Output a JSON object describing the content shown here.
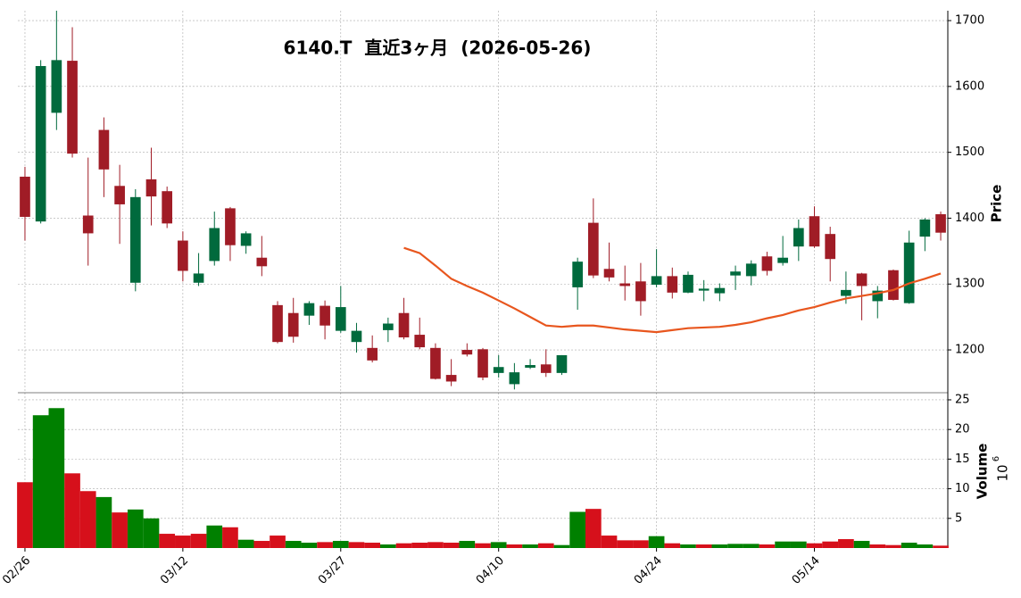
{
  "chart_data": {
    "type": "candlestick",
    "title": "6140.T  直近3ヶ月  (2026-05-26)",
    "y_label": "Price",
    "volume_label": "Volume",
    "volume_multiplier_base": "10",
    "volume_multiplier_exponent": "6",
    "categories": [
      "02/26",
      null,
      null,
      null,
      null,
      null,
      null,
      null,
      null,
      null,
      "03/12",
      null,
      null,
      null,
      null,
      null,
      null,
      null,
      null,
      null,
      "03/27",
      null,
      null,
      null,
      null,
      null,
      null,
      null,
      null,
      null,
      "04/10",
      null,
      null,
      null,
      null,
      null,
      null,
      null,
      null,
      null,
      "04/24",
      null,
      null,
      null,
      null,
      null,
      null,
      null,
      null,
      null,
      "05/14",
      null,
      null,
      null,
      null,
      null,
      null,
      null,
      null
    ],
    "open": [
      1463,
      1395,
      1560,
      1639,
      1404,
      1534,
      1449,
      1302,
      1459,
      1441,
      1366,
      1302,
      1335,
      1415,
      1358,
      1340,
      1268,
      1256,
      1252,
      1267,
      1229,
      1212,
      1203,
      1230,
      1256,
      1223,
      1203,
      1162,
      1200,
      1201,
      1165,
      1148,
      1173,
      1178,
      1165,
      1295,
      1393,
      1323,
      1301,
      1304,
      1299,
      1312,
      1287,
      1290,
      1286,
      1313,
      1312,
      1342,
      1332,
      1357,
      1403,
      1376,
      1282,
      1316,
      1274,
      1321,
      1271,
      1372,
      1406
    ],
    "high": [
      1478,
      1640,
      1715,
      1690,
      1492,
      1553,
      1481,
      1444,
      1507,
      1448,
      1380,
      1347,
      1410,
      1417,
      1380,
      1373,
      1274,
      1279,
      1274,
      1275,
      1297,
      1241,
      1222,
      1249,
      1279,
      1249,
      1210,
      1186,
      1210,
      1203,
      1192,
      1180,
      1186,
      1201,
      1192,
      1340,
      1430,
      1363,
      1328,
      1332,
      1353,
      1325,
      1319,
      1306,
      1301,
      1328,
      1336,
      1349,
      1373,
      1398,
      1418,
      1387,
      1319,
      1317,
      1297,
      1322,
      1381,
      1400,
      1410
    ],
    "low": [
      1366,
      1392,
      1534,
      1492,
      1328,
      1432,
      1361,
      1289,
      1389,
      1385,
      1304,
      1297,
      1328,
      1335,
      1346,
      1312,
      1210,
      1211,
      1238,
      1216,
      1226,
      1196,
      1181,
      1212,
      1216,
      1201,
      1155,
      1145,
      1190,
      1154,
      1158,
      1140,
      1171,
      1159,
      1162,
      1261,
      1309,
      1304,
      1275,
      1252,
      1295,
      1278,
      1286,
      1274,
      1274,
      1291,
      1298,
      1313,
      1328,
      1335,
      1355,
      1304,
      1270,
      1245,
      1248,
      1275,
      1270,
      1350,
      1366
    ],
    "close": [
      1402,
      1631,
      1640,
      1498,
      1377,
      1474,
      1421,
      1432,
      1433,
      1392,
      1320,
      1316,
      1385,
      1359,
      1377,
      1327,
      1212,
      1220,
      1271,
      1237,
      1265,
      1229,
      1184,
      1240,
      1219,
      1204,
      1156,
      1152,
      1193,
      1158,
      1174,
      1166,
      1177,
      1165,
      1192,
      1334,
      1313,
      1310,
      1297,
      1274,
      1312,
      1287,
      1314,
      1293,
      1294,
      1319,
      1331,
      1320,
      1340,
      1385,
      1357,
      1338,
      1291,
      1297,
      1290,
      1276,
      1363,
      1398,
      1378
    ],
    "volume": [
      11.1,
      22.4,
      23.6,
      12.6,
      9.6,
      8.6,
      6.0,
      6.5,
      5.0,
      2.4,
      2.1,
      2.4,
      3.8,
      3.5,
      1.4,
      1.2,
      2.1,
      1.2,
      0.9,
      1.0,
      1.2,
      1.0,
      0.9,
      0.6,
      0.8,
      0.9,
      1.0,
      0.9,
      1.2,
      0.8,
      1.0,
      0.6,
      0.6,
      0.8,
      0.5,
      6.1,
      6.6,
      2.1,
      1.3,
      1.3,
      2.0,
      0.8,
      0.6,
      0.6,
      0.6,
      0.7,
      0.7,
      0.6,
      1.1,
      1.1,
      0.8,
      1.1,
      1.5,
      1.2,
      0.6,
      0.5,
      0.9,
      0.6,
      0.4
    ],
    "moving_average": {
      "color": "#e8561e",
      "values": [
        null,
        null,
        null,
        null,
        null,
        null,
        null,
        null,
        null,
        null,
        null,
        null,
        null,
        null,
        null,
        null,
        null,
        null,
        null,
        null,
        null,
        null,
        null,
        null,
        1355,
        1347,
        1328,
        1308,
        1297,
        1287,
        1275,
        1263,
        1250,
        1237,
        1235,
        1237,
        1237,
        1234,
        1231,
        1229,
        1227,
        1230,
        1233,
        1234,
        1235,
        1238,
        1242,
        1248,
        1253,
        1260,
        1265,
        1272,
        1278,
        1282,
        1286,
        1291,
        1301,
        1308,
        1316
      ]
    },
    "up_color": "#006a3d",
    "down_color": "#a01c26",
    "volume_up_color": "#008000",
    "volume_down_color": "#d6101b",
    "ylim": [
      1135,
      1715
    ],
    "yticks": [
      1200,
      1300,
      1400,
      1500,
      1600,
      1700
    ],
    "volume_ylim": [
      0,
      26.2
    ],
    "volume_yticks": [
      5,
      10,
      15,
      20,
      25
    ],
    "grid": true
  }
}
